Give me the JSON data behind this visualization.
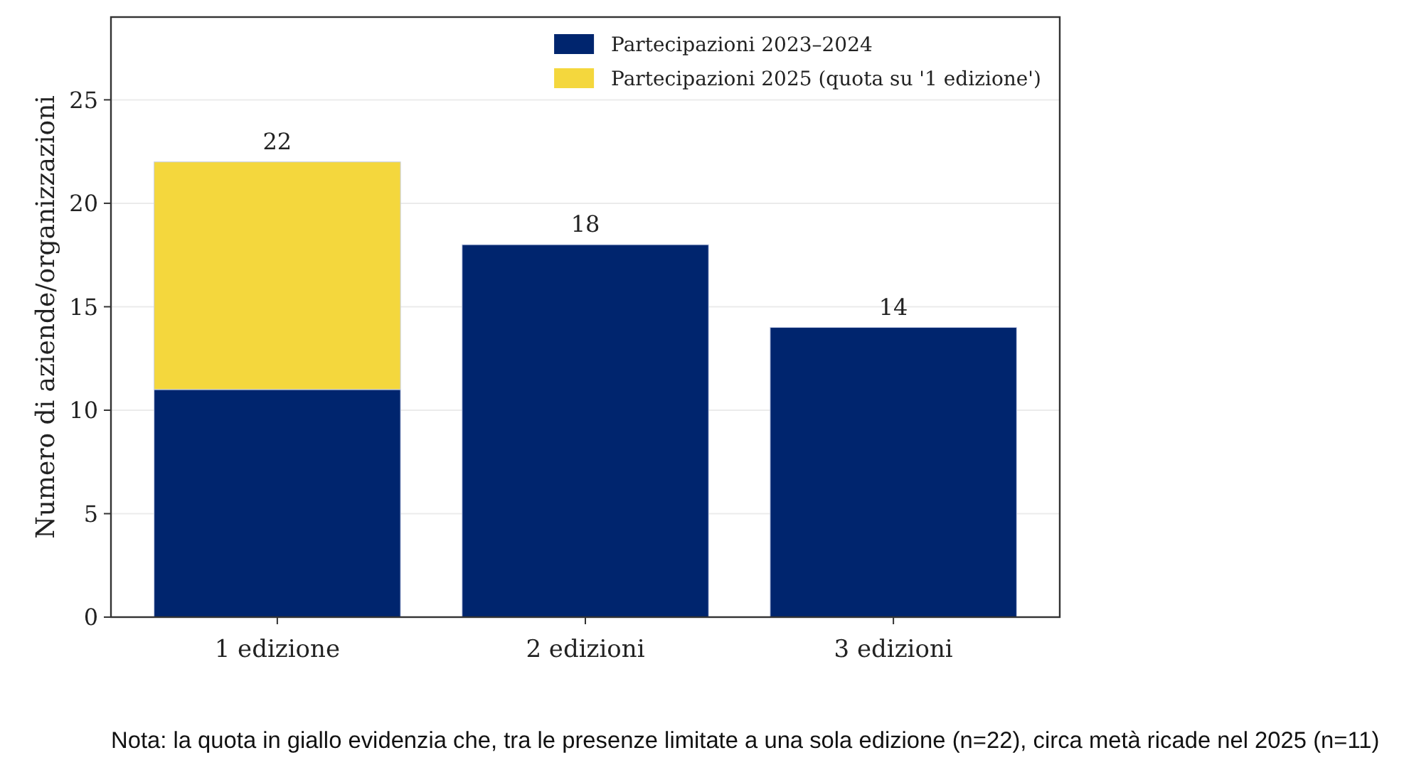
{
  "chart_data": {
    "type": "bar",
    "stacked": true,
    "ylabel": "Numero di aziende/organizzazioni",
    "categories": [
      "1 edizione",
      "2 edizioni",
      "3 edizioni"
    ],
    "series": [
      {
        "name": "Partecipazioni 2023–2024",
        "color": "#00256e",
        "values": [
          11,
          18,
          14
        ]
      },
      {
        "name": "Partecipazioni 2025 (quota su '1 edizione')",
        "color": "#f4d73d",
        "values": [
          11,
          null,
          null
        ]
      }
    ],
    "totals": [
      "22",
      "18",
      "14"
    ],
    "ylim": [
      0,
      29
    ],
    "yticks": [
      0,
      5,
      10,
      15,
      20,
      25
    ],
    "grid": "y",
    "legend": "top right",
    "annotations": [
      "Nota: la quota in giallo evidenzia che, tra le presenze limitate a una sola edizione (n=22), circa metà ricade nel 2025 (n=11)"
    ]
  }
}
